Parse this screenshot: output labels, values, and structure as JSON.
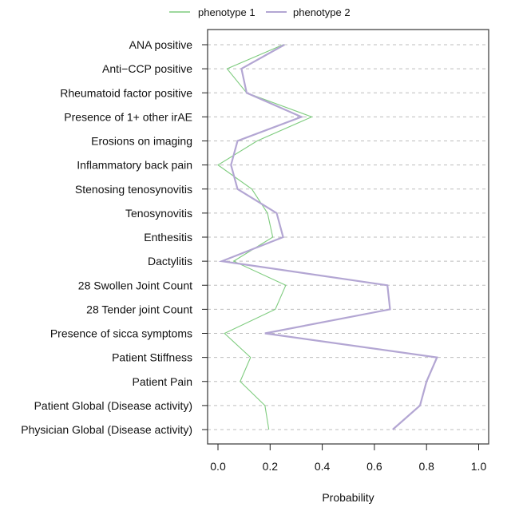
{
  "chart_data": {
    "type": "line",
    "title": "",
    "xlabel": "Probability",
    "ylabel": "",
    "xlim": [
      -0.04,
      1.04
    ],
    "x_ticks": [
      0.0,
      0.2,
      0.4,
      0.6,
      0.8,
      1.0
    ],
    "x_tick_labels": [
      "0.0",
      "0.2",
      "0.4",
      "0.6",
      "0.8",
      "1.0"
    ],
    "grid": "horizontal dashed",
    "legend_position": "top",
    "categories": [
      "ANA positive",
      "Anti−CCP positive",
      "Rheumatoid factor positive",
      "Presence of 1+ other irAE",
      "Erosions on imaging",
      "Inflammatory back pain",
      "Stenosing tenosynovitis",
      "Tenosynovitis",
      "Enthesitis",
      "Dactylitis",
      "28 Swollen Joint Count",
      "28 Tender joint Count",
      "Presence of sicca symptoms",
      "Patient Stiffness",
      "Patient Pain",
      "Patient Global (Disease activity)",
      "Physician Global (Disease activity)"
    ],
    "series": [
      {
        "name": "phenotype 1",
        "color": "#7fcc7f",
        "values": [
          0.25,
          0.035,
          0.11,
          0.36,
          0.15,
          0.0,
          0.13,
          0.19,
          0.21,
          0.06,
          0.26,
          0.22,
          0.025,
          0.125,
          0.085,
          0.18,
          0.195
        ]
      },
      {
        "name": "phenotype 2",
        "color": "#b3a6d3",
        "values": [
          0.255,
          0.09,
          0.11,
          0.32,
          0.075,
          0.05,
          0.075,
          0.225,
          0.25,
          0.015,
          0.65,
          0.66,
          0.18,
          0.84,
          0.8,
          0.775,
          0.67
        ]
      }
    ]
  }
}
